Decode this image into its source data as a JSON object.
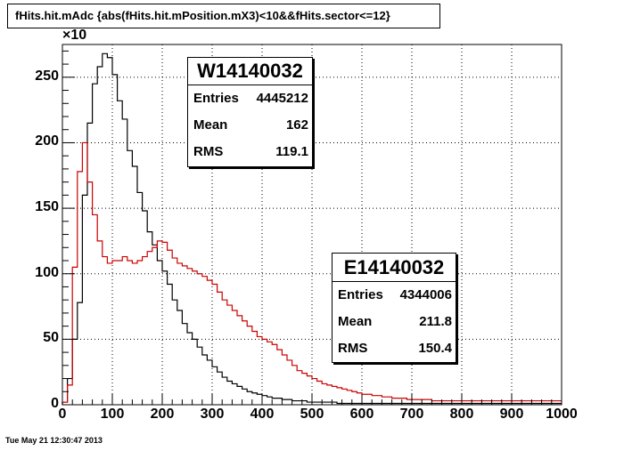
{
  "title": "fHits.hit.mAdc {abs(fHits.hit.mPosition.mX3)<10&&fHits.sector<=12}",
  "exponent_label": "×10",
  "footer_timestamp": "Tue May 21 12:30:47 2013",
  "colors": {
    "W14140032": "#000000",
    "E14140032": "#cc0000",
    "grid": "#000000"
  },
  "stat_labels": {
    "entries": "Entries",
    "mean": "Mean",
    "rms": "RMS"
  },
  "stats_boxes": [
    {
      "name": "W14140032",
      "entries": "4445212",
      "mean": "162",
      "rms": "119.1"
    },
    {
      "name": "E14140032",
      "entries": "4344006",
      "mean": "211.8",
      "rms": "150.4"
    }
  ],
  "chart_data": {
    "type": "line",
    "style": "step-histogram",
    "title": "fHits.hit.mAdc {abs(fHits.hit.mPosition.mX3)<10&&fHits.sector<=12}",
    "xlabel": "",
    "ylabel": "",
    "y_scale_factor": "×10",
    "xlim": [
      0,
      1000
    ],
    "ylim": [
      0,
      275
    ],
    "grid": true,
    "x_ticks": [
      "0",
      "100",
      "200",
      "300",
      "400",
      "500",
      "600",
      "700",
      "800",
      "900",
      "1000"
    ],
    "y_ticks": [
      "0",
      "50",
      "100",
      "150",
      "200",
      "250"
    ],
    "bin_width": 10,
    "bin_start": 0,
    "series": [
      {
        "name": "W14140032",
        "values": [
          2,
          20,
          50,
          78,
          160,
          215,
          245,
          258,
          268,
          265,
          252,
          232,
          218,
          194,
          182,
          162,
          148,
          132,
          122,
          110,
          102,
          92,
          80,
          72,
          62,
          55,
          50,
          44,
          38,
          34,
          29,
          25,
          21,
          18,
          16,
          14,
          12,
          10,
          9,
          8,
          7,
          6,
          5,
          5,
          4,
          4,
          3,
          3,
          3,
          2,
          2,
          2,
          2,
          2,
          2,
          1,
          1,
          1,
          1,
          1,
          1,
          1,
          1,
          1,
          1,
          1,
          1,
          1,
          1,
          1,
          1,
          1,
          1,
          1,
          1,
          1,
          1,
          1,
          1,
          1,
          1,
          1,
          1,
          1,
          1,
          1,
          1,
          1,
          1,
          1,
          1,
          1,
          1,
          1,
          1,
          1,
          1,
          1,
          1,
          1
        ]
      },
      {
        "name": "E14140032",
        "values": [
          2,
          15,
          105,
          178,
          200,
          170,
          145,
          125,
          113,
          108,
          110,
          110,
          113,
          110,
          108,
          110,
          113,
          117,
          120,
          125,
          124,
          118,
          112,
          108,
          106,
          104,
          102,
          100,
          98,
          95,
          92,
          86,
          80,
          76,
          72,
          68,
          64,
          60,
          56,
          52,
          50,
          48,
          46,
          42,
          38,
          34,
          30,
          26,
          24,
          22,
          20,
          18,
          16,
          15,
          14,
          13,
          12,
          11,
          10,
          9,
          8,
          8,
          7,
          7,
          6,
          6,
          5,
          5,
          5,
          4,
          4,
          4,
          4,
          4,
          3,
          3,
          3,
          3,
          3,
          3,
          3,
          3,
          3,
          3,
          3,
          3,
          3,
          3,
          3,
          3,
          3,
          3,
          3,
          3,
          3,
          3,
          3,
          3,
          3,
          3
        ]
      }
    ]
  }
}
